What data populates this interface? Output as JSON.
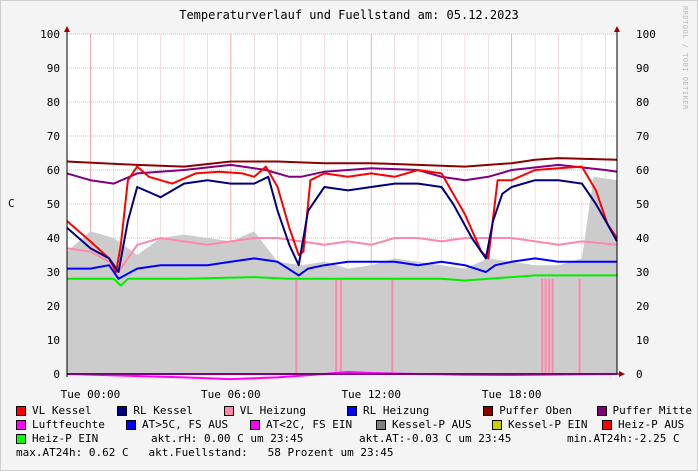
{
  "title": "Temperaturverlauf und Fuellstand am: 05.12.2023",
  "watermark": "RRDTOOL / TOBI OETIKER",
  "chart_data": {
    "type": "line",
    "ylabel": "C",
    "ylim": [
      0,
      100
    ],
    "yticks": [
      0,
      10,
      20,
      30,
      40,
      50,
      60,
      70,
      80,
      90,
      100
    ],
    "xlim_hours": [
      -1,
      22.5
    ],
    "xticks": [
      {
        "hour": 0,
        "label": "Tue 00:00"
      },
      {
        "hour": 6,
        "label": "Tue 06:00"
      },
      {
        "hour": 12,
        "label": "Tue 12:00"
      },
      {
        "hour": 18,
        "label": "Tue 18:00"
      }
    ],
    "grid": true,
    "legend_position": "bottom",
    "fill_series": {
      "name": "Luftfeuchte",
      "color": "#cccccc",
      "points": [
        [
          -1,
          36
        ],
        [
          0,
          42
        ],
        [
          1,
          40
        ],
        [
          2,
          35
        ],
        [
          3,
          40
        ],
        [
          4,
          41
        ],
        [
          5,
          40
        ],
        [
          6,
          39
        ],
        [
          7,
          42
        ],
        [
          8,
          33
        ],
        [
          9,
          32
        ],
        [
          10,
          33
        ],
        [
          11,
          31
        ],
        [
          12,
          32
        ],
        [
          13,
          34
        ],
        [
          14,
          33
        ],
        [
          15,
          32
        ],
        [
          16,
          31
        ],
        [
          17,
          34
        ],
        [
          18,
          33
        ],
        [
          19,
          32
        ],
        [
          20,
          32
        ],
        [
          21,
          34
        ],
        [
          21.5,
          58
        ],
        [
          22.5,
          57
        ]
      ]
    },
    "pulses": {
      "color": "#ff88aa",
      "top": 28,
      "hours": [
        8.8,
        10.5,
        10.7,
        12.9,
        19.3,
        19.45,
        19.6,
        19.75,
        20.9
      ]
    },
    "series": [
      {
        "name": "Puffer Oben",
        "color": "#8b0000",
        "points": [
          [
            -1,
            62.5
          ],
          [
            2,
            61.5
          ],
          [
            4,
            61
          ],
          [
            6,
            62.5
          ],
          [
            8,
            62.5
          ],
          [
            10,
            62
          ],
          [
            12,
            62
          ],
          [
            14,
            61.5
          ],
          [
            16,
            61
          ],
          [
            17,
            61.5
          ],
          [
            18,
            62
          ],
          [
            19,
            63
          ],
          [
            20,
            63.5
          ],
          [
            22.5,
            63
          ]
        ]
      },
      {
        "name": "Puffer Mitte",
        "color": "#800080",
        "points": [
          [
            -1,
            59
          ],
          [
            0,
            57
          ],
          [
            1,
            56
          ],
          [
            2,
            59
          ],
          [
            4,
            60
          ],
          [
            6,
            61.5
          ],
          [
            7.5,
            60
          ],
          [
            8.5,
            58
          ],
          [
            9,
            58
          ],
          [
            10,
            59.5
          ],
          [
            12,
            60.5
          ],
          [
            14,
            60
          ],
          [
            15,
            58
          ],
          [
            16,
            57
          ],
          [
            17,
            58
          ],
          [
            18,
            60
          ],
          [
            20,
            61.5
          ],
          [
            22,
            60
          ],
          [
            22.5,
            59.5
          ]
        ]
      },
      {
        "name": "VL Heizung",
        "color": "#ff88aa",
        "points": [
          [
            -1,
            37
          ],
          [
            0,
            36
          ],
          [
            0.8,
            33
          ],
          [
            1.2,
            30
          ],
          [
            2,
            38
          ],
          [
            3,
            40
          ],
          [
            4,
            39
          ],
          [
            5,
            38
          ],
          [
            6,
            39
          ],
          [
            7,
            40
          ],
          [
            8,
            40
          ],
          [
            9,
            39
          ],
          [
            10,
            38
          ],
          [
            11,
            39
          ],
          [
            12,
            38
          ],
          [
            13,
            40
          ],
          [
            14,
            40
          ],
          [
            15,
            39
          ],
          [
            16,
            40
          ],
          [
            17,
            40
          ],
          [
            18,
            40
          ],
          [
            19,
            39
          ],
          [
            20,
            38
          ],
          [
            21,
            39
          ],
          [
            22.5,
            38
          ]
        ]
      },
      {
        "name": "VL Kessel",
        "color": "#ff0000",
        "points": [
          [
            -1,
            45
          ],
          [
            0,
            39
          ],
          [
            0.8,
            34
          ],
          [
            1.1,
            30
          ],
          [
            1.3,
            38
          ],
          [
            1.6,
            57
          ],
          [
            2,
            61
          ],
          [
            2.5,
            58
          ],
          [
            3.5,
            56
          ],
          [
            4.5,
            59
          ],
          [
            5.5,
            59.5
          ],
          [
            6.5,
            59
          ],
          [
            7,
            58
          ],
          [
            7.5,
            61
          ],
          [
            8,
            55
          ],
          [
            8.5,
            43
          ],
          [
            8.9,
            35
          ],
          [
            9.1,
            36
          ],
          [
            9.4,
            57
          ],
          [
            10,
            59
          ],
          [
            11,
            58
          ],
          [
            12,
            59
          ],
          [
            13,
            58
          ],
          [
            14,
            60
          ],
          [
            15,
            59
          ],
          [
            16,
            47
          ],
          [
            16.7,
            36
          ],
          [
            17,
            34
          ],
          [
            17.4,
            57
          ],
          [
            18,
            57
          ],
          [
            19,
            60
          ],
          [
            20,
            60.5
          ],
          [
            21,
            61
          ],
          [
            21.6,
            54
          ],
          [
            22.1,
            44
          ],
          [
            22.5,
            40
          ]
        ]
      },
      {
        "name": "RL Kessel",
        "color": "#000080",
        "points": [
          [
            -1,
            43
          ],
          [
            0,
            37
          ],
          [
            0.8,
            34
          ],
          [
            1.2,
            30
          ],
          [
            1.6,
            45
          ],
          [
            2,
            55
          ],
          [
            3,
            52
          ],
          [
            4,
            56
          ],
          [
            5,
            57
          ],
          [
            6,
            56
          ],
          [
            7,
            56
          ],
          [
            7.6,
            58
          ],
          [
            8,
            48
          ],
          [
            8.5,
            38
          ],
          [
            8.9,
            32
          ],
          [
            9.3,
            48
          ],
          [
            10,
            55
          ],
          [
            11,
            54
          ],
          [
            12,
            55
          ],
          [
            13,
            56
          ],
          [
            14,
            56
          ],
          [
            15,
            55
          ],
          [
            15.5,
            50
          ],
          [
            16.3,
            40
          ],
          [
            16.9,
            34
          ],
          [
            17.2,
            45
          ],
          [
            17.6,
            53
          ],
          [
            18,
            55
          ],
          [
            19,
            57
          ],
          [
            20,
            57
          ],
          [
            21,
            56
          ],
          [
            21.6,
            50
          ],
          [
            22.1,
            44
          ],
          [
            22.5,
            39
          ]
        ]
      },
      {
        "name": "RL Heizung",
        "color": "#0000ff",
        "points": [
          [
            -1,
            31
          ],
          [
            0,
            31
          ],
          [
            0.8,
            32
          ],
          [
            1.2,
            28
          ],
          [
            2,
            31
          ],
          [
            3,
            32
          ],
          [
            4,
            32
          ],
          [
            5,
            32
          ],
          [
            6,
            33
          ],
          [
            7,
            34
          ],
          [
            8,
            33
          ],
          [
            8.9,
            29
          ],
          [
            9.3,
            31
          ],
          [
            10,
            32
          ],
          [
            11,
            33
          ],
          [
            12,
            33
          ],
          [
            13,
            33
          ],
          [
            14,
            32
          ],
          [
            15,
            33
          ],
          [
            16,
            32
          ],
          [
            16.9,
            30
          ],
          [
            17.3,
            32
          ],
          [
            18,
            33
          ],
          [
            19,
            34
          ],
          [
            20,
            33
          ],
          [
            21,
            33
          ],
          [
            22.5,
            33
          ]
        ]
      },
      {
        "name": "Heiz-P EIN",
        "color": "#00ee00",
        "points": [
          [
            -1,
            28
          ],
          [
            1,
            28
          ],
          [
            1.3,
            26
          ],
          [
            1.6,
            28
          ],
          [
            4,
            28
          ],
          [
            7,
            28.5
          ],
          [
            8.5,
            28
          ],
          [
            12,
            28
          ],
          [
            15,
            28
          ],
          [
            16,
            27.5
          ],
          [
            17,
            28
          ],
          [
            18,
            28.5
          ],
          [
            19,
            29
          ],
          [
            22.5,
            29
          ]
        ]
      },
      {
        "name": "Heiz-P EIN",
        "color": "#ff00ff",
        "points": [
          [
            -1,
            0
          ],
          [
            4,
            -1
          ],
          [
            6,
            -1.5
          ],
          [
            8,
            -1
          ],
          [
            10,
            0
          ],
          [
            11,
            0.6
          ],
          [
            12,
            0.3
          ],
          [
            14,
            0
          ],
          [
            16,
            -0.2
          ],
          [
            18,
            -0.3
          ],
          [
            22.5,
            0
          ]
        ]
      },
      {
        "name": "Luftfeuchte",
        "color": "#ff00ff",
        "points": [
          [
            -1,
            0
          ],
          [
            22.5,
            0
          ]
        ]
      }
    ]
  },
  "legend": {
    "row1": [
      {
        "label": "VL Kessel",
        "color": "#ff0000"
      },
      {
        "label": "RL Kessel",
        "color": "#000080"
      },
      {
        "label": "VL Heizung",
        "color": "#ff88aa"
      },
      {
        "label": "RL Heizung",
        "color": "#0000ff"
      },
      {
        "label": "Puffer Oben",
        "color": "#8b0000"
      },
      {
        "label": "Puffer Mitte",
        "color": "#800080"
      }
    ],
    "row2": [
      {
        "label": "Luftfeuchte",
        "color": "#ff00ff"
      },
      {
        "label": "AT>5C, FS AUS",
        "color": "#0000ff"
      },
      {
        "label": "AT<2C, FS EIN",
        "color": "#ff00ff"
      },
      {
        "label": "Kessel-P AUS",
        "color": "#808080"
      },
      {
        "label": "Kessel-P EIN",
        "color": "#cccc00"
      },
      {
        "label": "Heiz-P AUS",
        "color": "#ff0000"
      }
    ],
    "row3_item": {
      "label": "Heiz-P EIN",
      "color": "#00ff00"
    },
    "row3_stats": [
      "akt.rH: 0.00 C um 23:45",
      "akt.AT:-0.03 C um 23:45",
      "min.AT24h:-2.25 C"
    ],
    "row4": "max.AT24h: 0.62 C   akt.Fuellstand:   58 Prozent um 23:45"
  }
}
